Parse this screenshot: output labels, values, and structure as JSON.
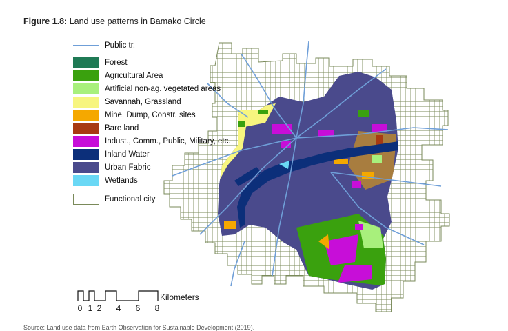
{
  "figure": {
    "label": "Figure 1.8:",
    "title": "Land use patterns in Bamako Circle"
  },
  "legend": {
    "items": [
      {
        "label": "Public tr.",
        "type": "line",
        "color": "#6f9fd8"
      },
      {
        "label": "Forest",
        "type": "fill",
        "color": "#1f7a55"
      },
      {
        "label": "Agricultural Area",
        "type": "fill",
        "color": "#3aa10e"
      },
      {
        "label": "Artificial non-ag. vegetated areas",
        "type": "fill",
        "color": "#a8f07c"
      },
      {
        "label": "Savannah, Grassland",
        "type": "fill",
        "color": "#f7f57f"
      },
      {
        "label": "Mine, Dump, Constr. sites",
        "type": "fill",
        "color": "#f5a800"
      },
      {
        "label": "Bare land",
        "type": "fill",
        "color": "#a83a12"
      },
      {
        "label": "Indust., Comm., Public, Military, etc.",
        "type": "fill",
        "color": "#c70ed8"
      },
      {
        "label": "Inland Water",
        "type": "fill",
        "color": "#0c2f7a"
      },
      {
        "label": "Urban Fabric",
        "type": "fill",
        "color": "#4a4a8c"
      },
      {
        "label": "Wetlands",
        "type": "fill",
        "color": "#6ad8f5"
      },
      {
        "label": "Functional city",
        "type": "outline",
        "color": "#7a8a5a"
      }
    ]
  },
  "scale_bar": {
    "unit": "Kilometers",
    "ticks": [
      "0",
      "1",
      "2",
      "4",
      "6",
      "8"
    ]
  },
  "source_note": "Source: Land use data from Earth Observation for Sustainable Development (2019)."
}
